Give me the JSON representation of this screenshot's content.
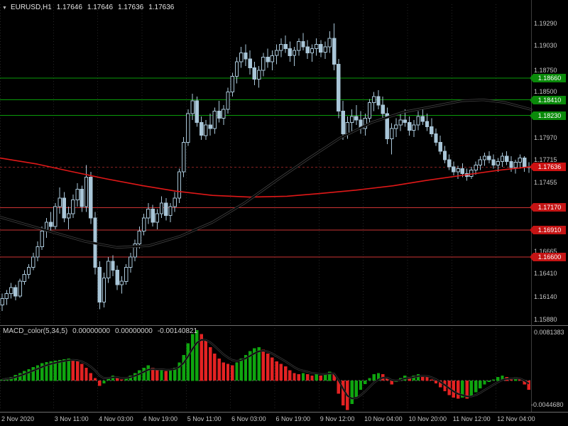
{
  "header": {
    "marker_icon": "▼",
    "symbol_period": "EURUSD,H1",
    "open": "1.17646",
    "high": "1.17646",
    "low": "1.17636",
    "close": "1.17636"
  },
  "chart_data": {
    "type": "candlestick",
    "title": "EURUSD,H1",
    "symbol": "EURUSD",
    "timeframe": "H1",
    "ylim": [
      1.15815,
      1.19511
    ],
    "y_axis_labels": [
      "1.19290",
      "1.19030",
      "1.18750",
      "1.18500",
      "1.17970",
      "1.17715",
      "1.17455",
      "1.16665",
      "1.16410",
      "1.16140",
      "1.15880"
    ],
    "x_ticks": [
      {
        "label": "2 Nov 2020",
        "index": 0
      },
      {
        "label": "3 Nov 11:00",
        "index": 12
      },
      {
        "label": "4 Nov 03:00",
        "index": 22
      },
      {
        "label": "4 Nov 19:00",
        "index": 32
      },
      {
        "label": "5 Nov 11:00",
        "index": 42
      },
      {
        "label": "6 Nov 03:00",
        "index": 52
      },
      {
        "label": "6 Nov 19:00",
        "index": 62
      },
      {
        "label": "9 Nov 12:00",
        "index": 72
      },
      {
        "label": "10 Nov 04:00",
        "index": 82
      },
      {
        "label": "10 Nov 20:00",
        "index": 92
      },
      {
        "label": "11 Nov 12:00",
        "index": 102
      },
      {
        "label": "12 Nov 04:00",
        "index": 112
      }
    ],
    "levels": {
      "resistance": [
        {
          "price": 1.1866,
          "label": "1.18660"
        },
        {
          "price": 1.1841,
          "label": "1.18410"
        },
        {
          "price": 1.1823,
          "label": "1.18230"
        }
      ],
      "support": [
        {
          "price": 1.1717,
          "label": "1.17170"
        },
        {
          "price": 1.1691,
          "label": "1.16910"
        },
        {
          "price": 1.166,
          "label": "1.16600"
        }
      ],
      "current_price": {
        "price": 1.17636,
        "label": "1.17636"
      }
    },
    "moving_averages": [
      {
        "name": "slow-red-ma",
        "color": "#e01818",
        "points": [
          [
            0,
            1.1774
          ],
          [
            0.07,
            1.1767
          ],
          [
            0.13,
            1.1759
          ],
          [
            0.2,
            1.175
          ],
          [
            0.27,
            1.1742
          ],
          [
            0.33,
            1.1736
          ],
          [
            0.4,
            1.1731
          ],
          [
            0.47,
            1.1729
          ],
          [
            0.54,
            1.173
          ],
          [
            0.6,
            1.1733
          ],
          [
            0.67,
            1.1737
          ],
          [
            0.74,
            1.1742
          ],
          [
            0.8,
            1.1748
          ],
          [
            0.87,
            1.1754
          ],
          [
            0.94,
            1.176
          ],
          [
            1,
            1.1764
          ]
        ]
      },
      {
        "name": "fast-black-ma",
        "color": "#000000",
        "points": [
          [
            0,
            1.1706
          ],
          [
            0.08,
            1.1692
          ],
          [
            0.16,
            1.1678
          ],
          [
            0.22,
            1.1671
          ],
          [
            0.28,
            1.1673
          ],
          [
            0.34,
            1.1684
          ],
          [
            0.4,
            1.17
          ],
          [
            0.46,
            1.1722
          ],
          [
            0.52,
            1.1748
          ],
          [
            0.58,
            1.1773
          ],
          [
            0.64,
            1.1797
          ],
          [
            0.7,
            1.1815
          ],
          [
            0.76,
            1.1827
          ],
          [
            0.82,
            1.1834
          ],
          [
            0.87,
            1.184
          ],
          [
            0.91,
            1.1841
          ],
          [
            0.95,
            1.1838
          ],
          [
            1,
            1.183
          ]
        ]
      }
    ],
    "candles": [
      [
        1.1605,
        1.1618,
        1.1598,
        1.1612
      ],
      [
        1.1612,
        1.1622,
        1.1605,
        1.1618
      ],
      [
        1.1618,
        1.163,
        1.1612,
        1.1625
      ],
      [
        1.1625,
        1.1628,
        1.161,
        1.1615
      ],
      [
        1.1615,
        1.1635,
        1.1613,
        1.1632
      ],
      [
        1.1632,
        1.1645,
        1.1628,
        1.164
      ],
      [
        1.164,
        1.1652,
        1.1635,
        1.1648
      ],
      [
        1.1648,
        1.1665,
        1.1645,
        1.166
      ],
      [
        1.166,
        1.1678,
        1.1655,
        1.1672
      ],
      [
        1.1672,
        1.1695,
        1.1668,
        1.169
      ],
      [
        1.169,
        1.1705,
        1.1682,
        1.17
      ],
      [
        1.17,
        1.1712,
        1.1688,
        1.1695
      ],
      [
        1.1695,
        1.1722,
        1.1692,
        1.1718
      ],
      [
        1.1718,
        1.174,
        1.171,
        1.1728
      ],
      [
        1.1728,
        1.1735,
        1.17,
        1.1705
      ],
      [
        1.1705,
        1.1718,
        1.1692,
        1.171
      ],
      [
        1.171,
        1.1732,
        1.1705,
        1.1726
      ],
      [
        1.1726,
        1.1745,
        1.1718,
        1.1738
      ],
      [
        1.1738,
        1.1742,
        1.1712,
        1.1718
      ],
      [
        1.1718,
        1.1766,
        1.1712,
        1.1752
      ],
      [
        1.1752,
        1.1758,
        1.1698,
        1.1705
      ],
      [
        1.1705,
        1.1712,
        1.164,
        1.1648
      ],
      [
        1.1648,
        1.1655,
        1.16,
        1.1608
      ],
      [
        1.1608,
        1.1642,
        1.1602,
        1.1636
      ],
      [
        1.1636,
        1.166,
        1.163,
        1.1655
      ],
      [
        1.1655,
        1.1662,
        1.1638,
        1.1645
      ],
      [
        1.1645,
        1.165,
        1.1622,
        1.1628
      ],
      [
        1.1628,
        1.1638,
        1.1618,
        1.1632
      ],
      [
        1.1632,
        1.1652,
        1.1628,
        1.1648
      ],
      [
        1.1648,
        1.1665,
        1.1642,
        1.166
      ],
      [
        1.166,
        1.168,
        1.1655,
        1.1675
      ],
      [
        1.1675,
        1.1695,
        1.167,
        1.169
      ],
      [
        1.169,
        1.171,
        1.1685,
        1.1705
      ],
      [
        1.1705,
        1.1722,
        1.1698,
        1.1715
      ],
      [
        1.1715,
        1.172,
        1.1695,
        1.17
      ],
      [
        1.17,
        1.1715,
        1.1692,
        1.171
      ],
      [
        1.171,
        1.173,
        1.1705,
        1.1722
      ],
      [
        1.1722,
        1.1728,
        1.1702,
        1.1708
      ],
      [
        1.1708,
        1.1722,
        1.17,
        1.1718
      ],
      [
        1.1718,
        1.1735,
        1.1712,
        1.1728
      ],
      [
        1.1728,
        1.1762,
        1.1722,
        1.1758
      ],
      [
        1.1758,
        1.1798,
        1.1752,
        1.1792
      ],
      [
        1.1792,
        1.183,
        1.1788,
        1.1825
      ],
      [
        1.1825,
        1.1848,
        1.1818,
        1.184
      ],
      [
        1.184,
        1.1845,
        1.181,
        1.1815
      ],
      [
        1.1815,
        1.1822,
        1.1795,
        1.18
      ],
      [
        1.18,
        1.1818,
        1.1795,
        1.1812
      ],
      [
        1.1812,
        1.1825,
        1.18,
        1.1808
      ],
      [
        1.1808,
        1.1832,
        1.1802,
        1.1828
      ],
      [
        1.1828,
        1.184,
        1.1815,
        1.182
      ],
      [
        1.182,
        1.1835,
        1.1812,
        1.183
      ],
      [
        1.183,
        1.1855,
        1.1825,
        1.185
      ],
      [
        1.185,
        1.1872,
        1.1845,
        1.1868
      ],
      [
        1.1868,
        1.189,
        1.186,
        1.1885
      ],
      [
        1.1885,
        1.1902,
        1.1878,
        1.1895
      ],
      [
        1.1895,
        1.1905,
        1.188,
        1.1888
      ],
      [
        1.1888,
        1.1898,
        1.187,
        1.1878
      ],
      [
        1.1878,
        1.1885,
        1.1858,
        1.1865
      ],
      [
        1.1865,
        1.188,
        1.1855,
        1.1875
      ],
      [
        1.1875,
        1.1895,
        1.1868,
        1.189
      ],
      [
        1.189,
        1.19,
        1.1878,
        1.1885
      ],
      [
        1.1885,
        1.1898,
        1.1875,
        1.1892
      ],
      [
        1.1892,
        1.1905,
        1.1882,
        1.1898
      ],
      [
        1.1898,
        1.1912,
        1.189,
        1.1905
      ],
      [
        1.1905,
        1.1915,
        1.1895,
        1.19
      ],
      [
        1.19,
        1.1908,
        1.1885,
        1.1892
      ],
      [
        1.1892,
        1.1902,
        1.188,
        1.1898
      ],
      [
        1.1898,
        1.1912,
        1.1892,
        1.1908
      ],
      [
        1.1908,
        1.1918,
        1.1898,
        1.1902
      ],
      [
        1.1902,
        1.191,
        1.1888,
        1.1895
      ],
      [
        1.1895,
        1.1905,
        1.1885,
        1.19
      ],
      [
        1.19,
        1.1912,
        1.1892,
        1.1905
      ],
      [
        1.1905,
        1.191,
        1.189,
        1.1896
      ],
      [
        1.1896,
        1.1908,
        1.1888,
        1.1902
      ],
      [
        1.1902,
        1.192,
        1.1895,
        1.1912
      ],
      [
        1.1912,
        1.1929,
        1.1875,
        1.1882
      ],
      [
        1.1882,
        1.1888,
        1.182,
        1.1828
      ],
      [
        1.1828,
        1.184,
        1.1795,
        1.1802
      ],
      [
        1.1802,
        1.1822,
        1.1796,
        1.1815
      ],
      [
        1.1815,
        1.183,
        1.1805,
        1.1822
      ],
      [
        1.1822,
        1.1835,
        1.1812,
        1.1818
      ],
      [
        1.1818,
        1.1828,
        1.1802,
        1.1808
      ],
      [
        1.1808,
        1.1825,
        1.18,
        1.182
      ],
      [
        1.182,
        1.1842,
        1.1815,
        1.1838
      ],
      [
        1.1838,
        1.185,
        1.1828,
        1.1845
      ],
      [
        1.1845,
        1.1852,
        1.183,
        1.1835
      ],
      [
        1.1835,
        1.1845,
        1.182,
        1.1825
      ],
      [
        1.1825,
        1.1832,
        1.179,
        1.1796
      ],
      [
        1.1796,
        1.1814,
        1.1778,
        1.1808
      ],
      [
        1.1808,
        1.182,
        1.1798,
        1.1812
      ],
      [
        1.1812,
        1.1825,
        1.1805,
        1.1818
      ],
      [
        1.1818,
        1.183,
        1.181,
        1.1815
      ],
      [
        1.1815,
        1.1822,
        1.18,
        1.1806
      ],
      [
        1.1806,
        1.1818,
        1.1798,
        1.1812
      ],
      [
        1.1812,
        1.1828,
        1.1806,
        1.1822
      ],
      [
        1.1822,
        1.1832,
        1.1812,
        1.1816
      ],
      [
        1.1816,
        1.1825,
        1.1805,
        1.181
      ],
      [
        1.181,
        1.182,
        1.1798,
        1.1802
      ],
      [
        1.1802,
        1.1808,
        1.1788,
        1.1792
      ],
      [
        1.1792,
        1.18,
        1.1778,
        1.1782
      ],
      [
        1.1782,
        1.1788,
        1.1768,
        1.1772
      ],
      [
        1.1772,
        1.1778,
        1.176,
        1.1764
      ],
      [
        1.1764,
        1.177,
        1.1754,
        1.1758
      ],
      [
        1.1758,
        1.1765,
        1.175,
        1.1762
      ],
      [
        1.1762,
        1.1768,
        1.1752,
        1.1756
      ],
      [
        1.1756,
        1.1762,
        1.1748,
        1.1753
      ],
      [
        1.1753,
        1.1764,
        1.175,
        1.176
      ],
      [
        1.176,
        1.177,
        1.1755,
        1.1766
      ],
      [
        1.1766,
        1.1776,
        1.176,
        1.1772
      ],
      [
        1.1772,
        1.178,
        1.1765,
        1.1776
      ],
      [
        1.1776,
        1.1782,
        1.1768,
        1.1772
      ],
      [
        1.1772,
        1.1778,
        1.1762,
        1.1766
      ],
      [
        1.1766,
        1.1774,
        1.1758,
        1.177
      ],
      [
        1.177,
        1.178,
        1.1764,
        1.1776
      ],
      [
        1.1776,
        1.1782,
        1.1766,
        1.177
      ],
      [
        1.177,
        1.1776,
        1.1758,
        1.1763
      ],
      [
        1.1763,
        1.1772,
        1.1756,
        1.1769
      ],
      [
        1.1769,
        1.1778,
        1.1762,
        1.1774
      ],
      [
        1.1774,
        1.1776,
        1.1758,
        1.1764
      ],
      [
        1.1764,
        1.1769,
        1.1757,
        1.17636
      ]
    ],
    "macd": {
      "label": "MACD_color(5,34,5)",
      "values_text": [
        "0.00000000",
        "0.00000000",
        "-0.00140821"
      ],
      "ylim": [
        -0.004468,
        0.0081383
      ],
      "axis_labels": {
        "max": "0.0081383",
        "min": "-0.0044680"
      },
      "histogram": [
        0.0002,
        0.0004,
        0.0006,
        0.0009,
        0.0012,
        0.0015,
        0.0018,
        0.0021,
        0.0024,
        0.0027,
        0.0029,
        0.003,
        0.0031,
        0.0032,
        0.0033,
        0.0034,
        0.0033,
        0.003,
        0.0026,
        0.002,
        0.0012,
        0.0004,
        -0.0008,
        -0.0004,
        0.0004,
        0.0008,
        0.0005,
        0.0002,
        0.0004,
        0.0008,
        0.0012,
        0.0016,
        0.002,
        0.0024,
        0.002,
        0.0016,
        0.0018,
        0.0015,
        0.0017,
        0.002,
        0.0028,
        0.004,
        0.0058,
        0.0072,
        0.0078,
        0.0072,
        0.0062,
        0.0052,
        0.0042,
        0.0034,
        0.0028,
        0.0026,
        0.0024,
        0.0028,
        0.0034,
        0.004,
        0.0046,
        0.005,
        0.0052,
        0.0048,
        0.0042,
        0.0036,
        0.003,
        0.0026,
        0.0022,
        0.0016,
        0.0012,
        0.001,
        0.0012,
        0.001,
        0.0008,
        0.001,
        0.0008,
        0.001,
        0.0014,
        0.001,
        -0.002,
        -0.0038,
        -0.0045,
        -0.0036,
        -0.0025,
        -0.0014,
        -0.0005,
        0.0004,
        0.001,
        0.0012,
        0.001,
        0.0004,
        -0.0006,
        -0.0002,
        0.0004,
        0.0008,
        0.0006,
        0.0008,
        0.001,
        0.0008,
        0.0006,
        0.0002,
        -0.0004,
        -0.001,
        -0.0016,
        -0.0022,
        -0.0026,
        -0.0028,
        -0.0026,
        -0.0028,
        -0.0024,
        -0.0018,
        -0.0012,
        -0.0006,
        -0.0002,
        0.0002,
        0.0006,
        0.0008,
        0.0006,
        0.0004,
        0.0005,
        0.0002,
        -0.0006,
        -0.0014
      ]
    },
    "colors": {
      "background": "#000000",
      "candle": "#a9c6d8",
      "bull_fill": "#000000",
      "resistance": "#0a9a0a",
      "resistance_badge": "#0a8a0a",
      "support": "#cc3333",
      "support_badge": "#c41414",
      "current_badge": "#cc1111",
      "axis_text": "#c6c6c6",
      "macd_up": "#0fa50f",
      "macd_down": "#e32222",
      "grid": "#262626",
      "separator": "#6e6e6e",
      "ma_fast_halo": "#3f3f3f",
      "signal": "#000000"
    }
  }
}
